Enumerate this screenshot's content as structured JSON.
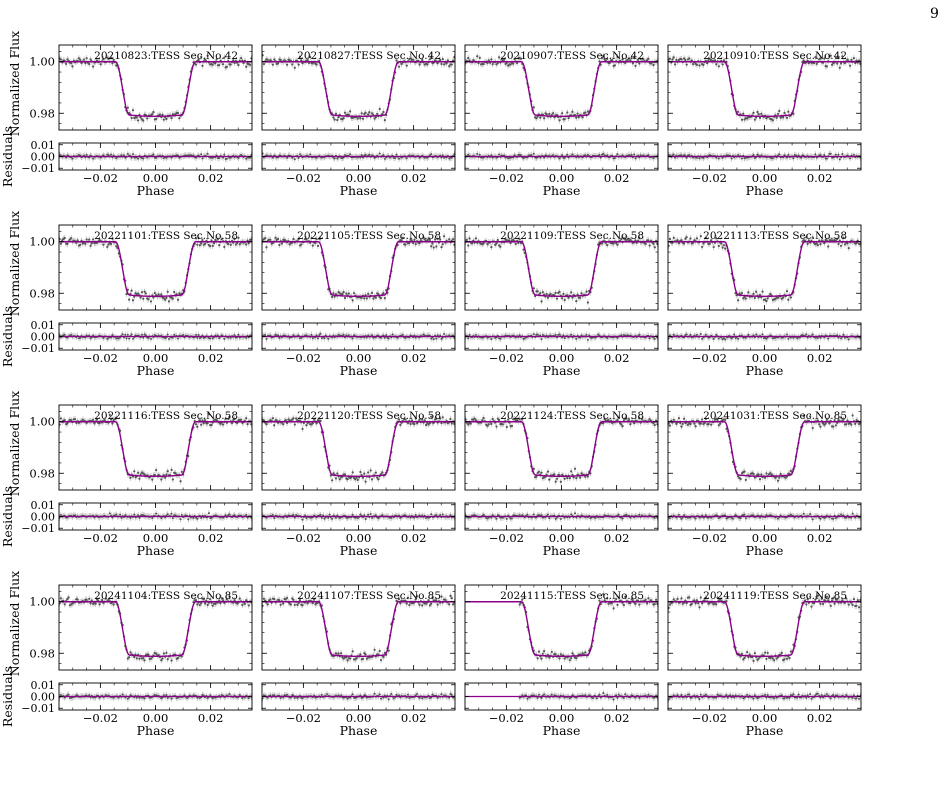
{
  "page": {
    "number": "9"
  },
  "figure": {
    "ylabel_flux": "Normalized Flux",
    "ylabel_resid": "Residuals",
    "xlabel": "Phase",
    "x_ticks": [
      "−0.02",
      "0.00",
      "0.02"
    ],
    "y_ticks_flux": [
      "1.00",
      "0.98"
    ],
    "y_ticks_resid": [
      "0.01",
      "0.00",
      "−0.01"
    ],
    "colors": {
      "model": "#8b008b",
      "data": "#555555",
      "residual_line": "#8b008b",
      "axes": "#000000"
    }
  },
  "chart_data": {
    "type": "scatter",
    "description_of_layout": "4x4 grid of transit light curves, each with a residual panel",
    "x": {
      "label": "Phase",
      "range": [
        -0.035,
        0.035
      ]
    },
    "flux_axis": {
      "label": "Normalized Flux",
      "range": [
        0.9735,
        1.0065
      ]
    },
    "residual_axis": {
      "label": "Residuals",
      "range": [
        -0.0115,
        0.0115
      ]
    },
    "model": {
      "baseline": 1.0,
      "depth": 0.02,
      "ingress_start": -0.0145,
      "ingress_end": -0.0095,
      "egress_start": 0.0095,
      "egress_end": 0.0145
    },
    "panels": [
      {
        "label": "20210823:TESS Sec.No.42",
        "data_start": -0.035
      },
      {
        "label": "20210827:TESS Sec.No.42",
        "data_start": -0.035
      },
      {
        "label": "20210907:TESS Sec.No.42",
        "data_start": -0.035
      },
      {
        "label": "20210910:TESS Sec.No.42",
        "data_start": -0.035
      },
      {
        "label": "20221101:TESS Sec.No.58",
        "data_start": -0.035
      },
      {
        "label": "20221105:TESS Sec.No.58",
        "data_start": -0.035
      },
      {
        "label": "20221109:TESS Sec.No.58",
        "data_start": -0.035
      },
      {
        "label": "20221113:TESS Sec.No.58",
        "data_start": -0.035
      },
      {
        "label": "20221116:TESS Sec.No.58",
        "data_start": -0.035
      },
      {
        "label": "20221120:TESS Sec.No.58",
        "data_start": -0.035
      },
      {
        "label": "20221124:TESS Sec.No.58",
        "data_start": -0.035
      },
      {
        "label": "20241031:TESS Sec.No.85",
        "data_start": -0.035
      },
      {
        "label": "20241104:TESS Sec.No.85",
        "data_start": -0.035
      },
      {
        "label": "20241107:TESS Sec.No.85",
        "data_start": -0.035
      },
      {
        "label": "20241115:TESS Sec.No.85",
        "data_start": -0.0155
      },
      {
        "label": "20241119:TESS Sec.No.85",
        "data_start": -0.035
      }
    ]
  }
}
